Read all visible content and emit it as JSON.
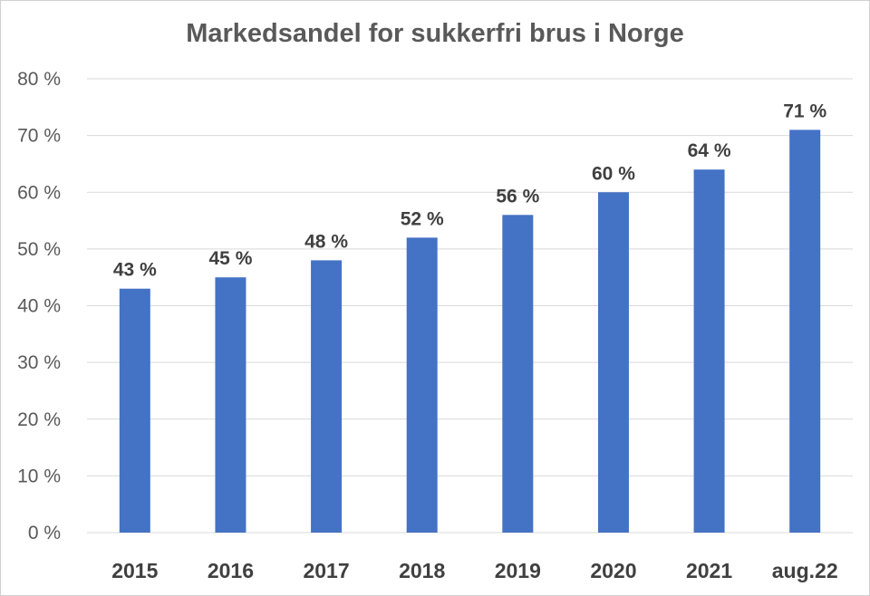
{
  "chart_data": {
    "type": "bar",
    "title": "Markedsandel for sukkerfri brus i Norge",
    "categories": [
      "2015",
      "2016",
      "2017",
      "2018",
      "2019",
      "2020",
      "2021",
      "aug.22"
    ],
    "values": [
      43,
      45,
      48,
      52,
      56,
      60,
      64,
      71
    ],
    "data_labels": [
      "43 %",
      "45 %",
      "48 %",
      "52 %",
      "56 %",
      "60 %",
      "64 %",
      "71 %"
    ],
    "ylim": [
      0,
      80
    ],
    "yticks": [
      0,
      10,
      20,
      30,
      40,
      50,
      60,
      70,
      80
    ],
    "ytick_labels": [
      "0 %",
      "10 %",
      "20 %",
      "30 %",
      "40 %",
      "50 %",
      "60 %",
      "70 %",
      "80 %"
    ],
    "xlabel": "",
    "ylabel": "",
    "grid": true,
    "legend": "none",
    "bar_color": "#4472C4",
    "grid_color": "#D9D9D9"
  }
}
